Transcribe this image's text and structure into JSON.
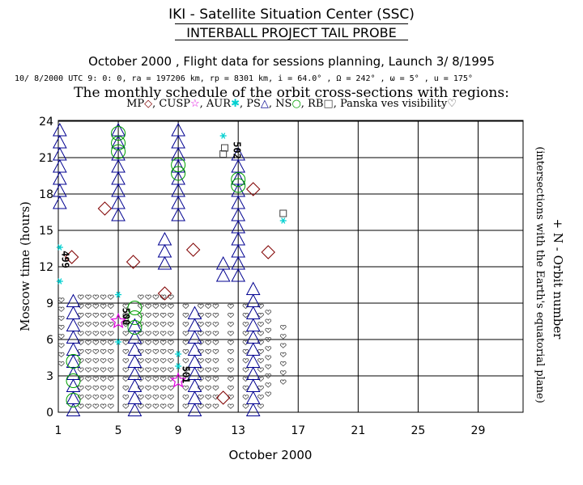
{
  "header": {
    "org": "IKI - Satellite Situation Center (SSC)",
    "project": "INTERBALL PROJECT TAIL PROBE",
    "subtitle": "October  2000 ,  Flight data for sessions planning,  Launch  3/ 8/1995",
    "orbit_params": "10/ 8/2000 UTC  9: 0: 0, ra = 197206 km, rp =   8301 km, i = 64.0° , Ω = 242° , ω =   5° , u = 175°",
    "monthly_title": "The monthly schedule of the orbit cross-sections with regions:"
  },
  "legend": {
    "items": [
      {
        "label": "MP",
        "symbol": "◇",
        "color": "#800000"
      },
      {
        "label": ", CUSP",
        "symbol": "☆",
        "color": "#e000e0"
      },
      {
        "label": ", AUR",
        "symbol": "✱",
        "color": "#00d0d0"
      },
      {
        "label": ", PS",
        "symbol": "△",
        "color": "#000090"
      },
      {
        "label": ", NS",
        "symbol": "○",
        "color": "#00a000"
      },
      {
        "label": ", RB",
        "symbol": "□",
        "color": "#404040"
      },
      {
        "label": ", Panska ves visibility",
        "symbol": "♡",
        "color": "#404040"
      }
    ]
  },
  "chart_data": {
    "type": "scatter",
    "xlabel": "October 2000",
    "ylabel": "Moscow time (hours)",
    "right_label_1": "+ N -  Orbit number",
    "right_label_2": "(intersections with the Earth's equatorial plane)",
    "xlim": [
      1,
      32
    ],
    "ylim": [
      0,
      24
    ],
    "x_ticks": [
      1,
      5,
      9,
      13,
      17,
      21,
      25,
      29
    ],
    "y_ticks": [
      0,
      3,
      6,
      9,
      12,
      15,
      18,
      21,
      24
    ],
    "grid": true,
    "colors": {
      "MP": "#800000",
      "CUSP": "#e000e0",
      "AUR": "#00d0d0",
      "PS": "#000090",
      "NS": "#00a000",
      "RB": "#404040",
      "VIS": "#404040"
    },
    "orbit_labels": [
      {
        "text": "499",
        "x": 1.25,
        "y": 12.6
      },
      {
        "text": "500",
        "x": 5.3,
        "y": 7.9
      },
      {
        "text": "501",
        "x": 9.3,
        "y": 3.1
      },
      {
        "text": "502",
        "x": 12.7,
        "y": 21.6
      }
    ],
    "series": [
      {
        "name": "PS",
        "segments": [
          {
            "x": 1.1,
            "y0": 17.3,
            "y1": 23.6
          },
          {
            "x": 2.0,
            "y0": 0.2,
            "y1": 9.6
          },
          {
            "x": 5.0,
            "y0": 16.3,
            "y1": 23.6
          },
          {
            "x": 6.1,
            "y0": 0.2,
            "y1": 7.6
          },
          {
            "x": 8.1,
            "y0": 12.3,
            "y1": 14.6
          },
          {
            "x": 9.0,
            "y0": 16.3,
            "y1": 23.6
          },
          {
            "x": 10.1,
            "y0": 0.2,
            "y1": 8.6
          },
          {
            "x": 12.0,
            "y0": 11.3,
            "y1": 12.6
          },
          {
            "x": 13.0,
            "y0": 11.3,
            "y1": 21.6
          },
          {
            "x": 14.0,
            "y0": 0.2,
            "y1": 10.6
          }
        ]
      },
      {
        "name": "NS",
        "points": [
          {
            "x": 2.0,
            "y": 1.0
          },
          {
            "x": 2.0,
            "y": 2.6
          },
          {
            "x": 2.0,
            "y": 4.2
          },
          {
            "x": 5.0,
            "y": 21.5
          },
          {
            "x": 5.0,
            "y": 22.2
          },
          {
            "x": 5.0,
            "y": 23.0
          },
          {
            "x": 6.1,
            "y": 7.0
          },
          {
            "x": 6.1,
            "y": 7.8
          },
          {
            "x": 6.1,
            "y": 8.6
          },
          {
            "x": 9.0,
            "y": 19.7
          },
          {
            "x": 9.0,
            "y": 20.4
          },
          {
            "x": 13.0,
            "y": 18.7
          },
          {
            "x": 13.0,
            "y": 19.2
          }
        ]
      },
      {
        "name": "MP",
        "points": [
          {
            "x": 1.9,
            "y": 12.8
          },
          {
            "x": 4.1,
            "y": 16.8
          },
          {
            "x": 6.0,
            "y": 12.4
          },
          {
            "x": 8.1,
            "y": 9.8
          },
          {
            "x": 10.0,
            "y": 13.4
          },
          {
            "x": 12.0,
            "y": 1.2
          },
          {
            "x": 14.0,
            "y": 18.4
          },
          {
            "x": 15.0,
            "y": 13.2
          }
        ]
      },
      {
        "name": "CUSP",
        "points": [
          {
            "x": 5.0,
            "y": 7.5
          },
          {
            "x": 9.0,
            "y": 2.6
          }
        ]
      },
      {
        "name": "AUR",
        "points": [
          {
            "x": 1.1,
            "y": 10.8
          },
          {
            "x": 1.1,
            "y": 13.6
          },
          {
            "x": 5.0,
            "y": 5.8
          },
          {
            "x": 5.0,
            "y": 9.7
          },
          {
            "x": 9.0,
            "y": 3.8
          },
          {
            "x": 9.0,
            "y": 4.8
          },
          {
            "x": 12.0,
            "y": 22.8
          },
          {
            "x": 16.0,
            "y": 15.8
          }
        ]
      },
      {
        "name": "RB",
        "points": [
          {
            "x": 12.0,
            "y": 21.3
          },
          {
            "x": 12.1,
            "y": 21.8
          },
          {
            "x": 16.0,
            "y": 16.4
          }
        ]
      },
      {
        "name": "VIS",
        "columns": [
          {
            "x": 1.2,
            "y0": 4.0,
            "y1": 9.5
          },
          {
            "x": 2.5,
            "y0": 0.5,
            "y1": 10.0
          },
          {
            "x": 3.0,
            "y0": 0.5,
            "y1": 10.0
          },
          {
            "x": 3.5,
            "y0": 0.5,
            "y1": 10.0
          },
          {
            "x": 4.0,
            "y0": 0.5,
            "y1": 10.0
          },
          {
            "x": 4.5,
            "y0": 0.5,
            "y1": 10.0
          },
          {
            "x": 5.5,
            "y0": 0.5,
            "y1": 9.0
          },
          {
            "x": 6.5,
            "y0": 0.5,
            "y1": 9.5
          },
          {
            "x": 7.0,
            "y0": 0.5,
            "y1": 9.5
          },
          {
            "x": 7.5,
            "y0": 0.5,
            "y1": 9.5
          },
          {
            "x": 8.0,
            "y0": 0.5,
            "y1": 9.5
          },
          {
            "x": 8.5,
            "y0": 0.5,
            "y1": 9.5
          },
          {
            "x": 9.5,
            "y0": 0.5,
            "y1": 9.0
          },
          {
            "x": 10.5,
            "y0": 0.5,
            "y1": 9.0
          },
          {
            "x": 11.0,
            "y0": 0.5,
            "y1": 9.0
          },
          {
            "x": 11.5,
            "y0": 0.5,
            "y1": 9.0
          },
          {
            "x": 12.5,
            "y0": 0.5,
            "y1": 9.0
          },
          {
            "x": 13.5,
            "y0": 0.5,
            "y1": 9.0
          },
          {
            "x": 14.5,
            "y0": 0.5,
            "y1": 9.0
          },
          {
            "x": 15.0,
            "y0": 1.5,
            "y1": 8.5
          },
          {
            "x": 16.0,
            "y0": 2.5,
            "y1": 7.0
          }
        ]
      }
    ]
  }
}
